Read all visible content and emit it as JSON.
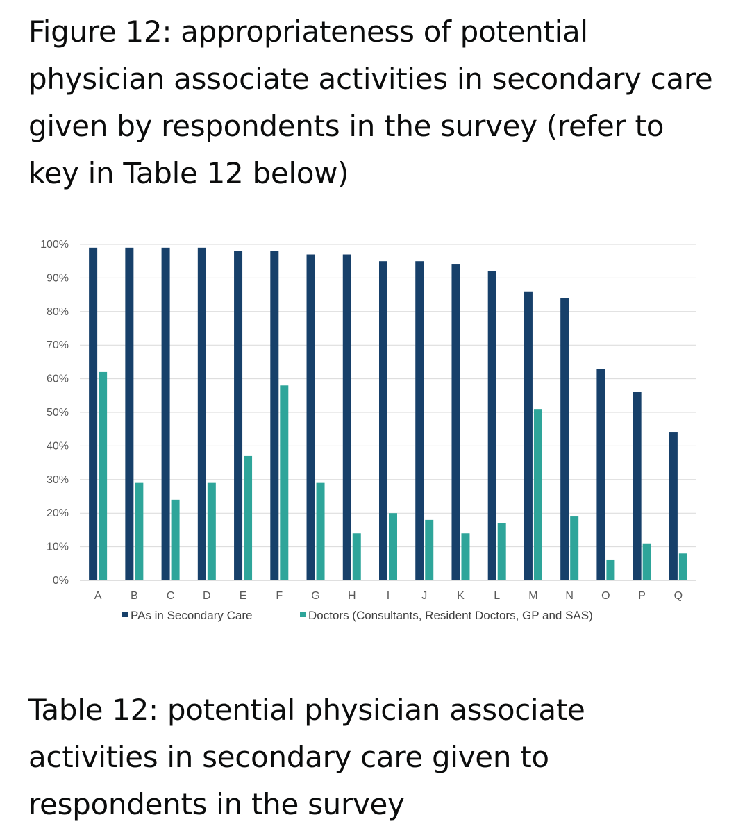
{
  "figure_heading": "Figure 12: appropriateness of potential physician associate activities in secondary care given by respondents in the survey (refer to key in Table 12 below)",
  "table_heading": "Table 12: potential physician associate activities in secondary care given to respondents in the survey",
  "colors": {
    "series_pa": "#17406a",
    "series_doctors": "#2ea59a",
    "grid": "#d9d9d9",
    "axis": "#bfbfbf"
  },
  "chart_data": {
    "type": "bar",
    "categories": [
      "A",
      "B",
      "C",
      "D",
      "E",
      "F",
      "G",
      "H",
      "I",
      "J",
      "K",
      "L",
      "M",
      "N",
      "O",
      "P",
      "Q"
    ],
    "series": [
      {
        "name": "PAs in Secondary Care",
        "values": [
          99,
          99,
          99,
          99,
          98,
          98,
          97,
          97,
          95,
          95,
          94,
          92,
          86,
          84,
          63,
          56,
          44
        ]
      },
      {
        "name": "Doctors (Consultants, Resident Doctors, GP and SAS)",
        "values": [
          62,
          29,
          24,
          29,
          37,
          58,
          29,
          14,
          20,
          18,
          14,
          17,
          51,
          19,
          6,
          11,
          8
        ]
      }
    ],
    "ylim": [
      0,
      100
    ],
    "yticks": [
      0,
      10,
      20,
      30,
      40,
      50,
      60,
      70,
      80,
      90,
      100
    ],
    "ytick_labels": [
      "0%",
      "10%",
      "20%",
      "30%",
      "40%",
      "50%",
      "60%",
      "70%",
      "80%",
      "90%",
      "100%"
    ],
    "grid": true,
    "legend": "bottom"
  }
}
